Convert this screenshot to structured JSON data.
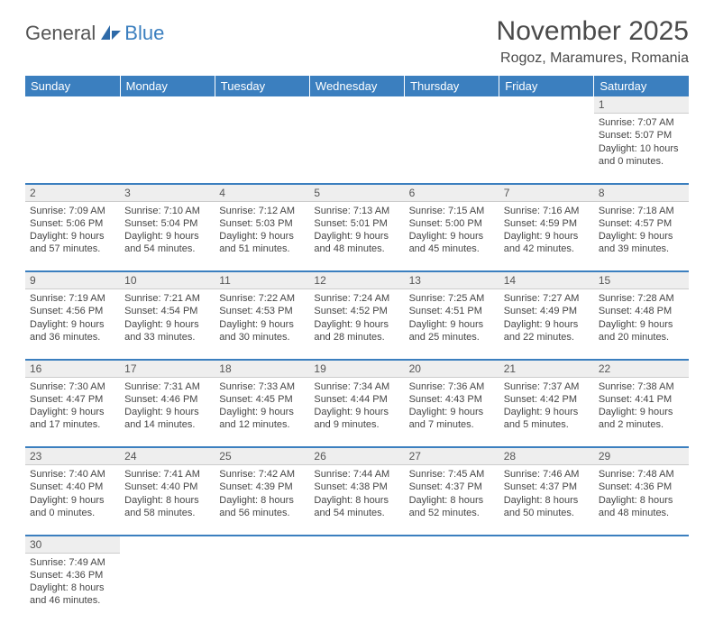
{
  "logo": {
    "word1": "General",
    "word2": "Blue"
  },
  "title": "November 2025",
  "location": "Rogoz, Maramures, Romania",
  "colors": {
    "accent": "#3b7fbf",
    "header_bg": "#3b7fbf",
    "header_text": "#ffffff",
    "daynum_bg": "#eeeeee",
    "text": "#454545",
    "background": "#ffffff"
  },
  "calendar": {
    "type": "table",
    "columns": [
      "Sunday",
      "Monday",
      "Tuesday",
      "Wednesday",
      "Thursday",
      "Friday",
      "Saturday"
    ],
    "weeks": [
      [
        null,
        null,
        null,
        null,
        null,
        null,
        {
          "day": "1",
          "sunrise": "Sunrise: 7:07 AM",
          "sunset": "Sunset: 5:07 PM",
          "daylight1": "Daylight: 10 hours",
          "daylight2": "and 0 minutes."
        }
      ],
      [
        {
          "day": "2",
          "sunrise": "Sunrise: 7:09 AM",
          "sunset": "Sunset: 5:06 PM",
          "daylight1": "Daylight: 9 hours",
          "daylight2": "and 57 minutes."
        },
        {
          "day": "3",
          "sunrise": "Sunrise: 7:10 AM",
          "sunset": "Sunset: 5:04 PM",
          "daylight1": "Daylight: 9 hours",
          "daylight2": "and 54 minutes."
        },
        {
          "day": "4",
          "sunrise": "Sunrise: 7:12 AM",
          "sunset": "Sunset: 5:03 PM",
          "daylight1": "Daylight: 9 hours",
          "daylight2": "and 51 minutes."
        },
        {
          "day": "5",
          "sunrise": "Sunrise: 7:13 AM",
          "sunset": "Sunset: 5:01 PM",
          "daylight1": "Daylight: 9 hours",
          "daylight2": "and 48 minutes."
        },
        {
          "day": "6",
          "sunrise": "Sunrise: 7:15 AM",
          "sunset": "Sunset: 5:00 PM",
          "daylight1": "Daylight: 9 hours",
          "daylight2": "and 45 minutes."
        },
        {
          "day": "7",
          "sunrise": "Sunrise: 7:16 AM",
          "sunset": "Sunset: 4:59 PM",
          "daylight1": "Daylight: 9 hours",
          "daylight2": "and 42 minutes."
        },
        {
          "day": "8",
          "sunrise": "Sunrise: 7:18 AM",
          "sunset": "Sunset: 4:57 PM",
          "daylight1": "Daylight: 9 hours",
          "daylight2": "and 39 minutes."
        }
      ],
      [
        {
          "day": "9",
          "sunrise": "Sunrise: 7:19 AM",
          "sunset": "Sunset: 4:56 PM",
          "daylight1": "Daylight: 9 hours",
          "daylight2": "and 36 minutes."
        },
        {
          "day": "10",
          "sunrise": "Sunrise: 7:21 AM",
          "sunset": "Sunset: 4:54 PM",
          "daylight1": "Daylight: 9 hours",
          "daylight2": "and 33 minutes."
        },
        {
          "day": "11",
          "sunrise": "Sunrise: 7:22 AM",
          "sunset": "Sunset: 4:53 PM",
          "daylight1": "Daylight: 9 hours",
          "daylight2": "and 30 minutes."
        },
        {
          "day": "12",
          "sunrise": "Sunrise: 7:24 AM",
          "sunset": "Sunset: 4:52 PM",
          "daylight1": "Daylight: 9 hours",
          "daylight2": "and 28 minutes."
        },
        {
          "day": "13",
          "sunrise": "Sunrise: 7:25 AM",
          "sunset": "Sunset: 4:51 PM",
          "daylight1": "Daylight: 9 hours",
          "daylight2": "and 25 minutes."
        },
        {
          "day": "14",
          "sunrise": "Sunrise: 7:27 AM",
          "sunset": "Sunset: 4:49 PM",
          "daylight1": "Daylight: 9 hours",
          "daylight2": "and 22 minutes."
        },
        {
          "day": "15",
          "sunrise": "Sunrise: 7:28 AM",
          "sunset": "Sunset: 4:48 PM",
          "daylight1": "Daylight: 9 hours",
          "daylight2": "and 20 minutes."
        }
      ],
      [
        {
          "day": "16",
          "sunrise": "Sunrise: 7:30 AM",
          "sunset": "Sunset: 4:47 PM",
          "daylight1": "Daylight: 9 hours",
          "daylight2": "and 17 minutes."
        },
        {
          "day": "17",
          "sunrise": "Sunrise: 7:31 AM",
          "sunset": "Sunset: 4:46 PM",
          "daylight1": "Daylight: 9 hours",
          "daylight2": "and 14 minutes."
        },
        {
          "day": "18",
          "sunrise": "Sunrise: 7:33 AM",
          "sunset": "Sunset: 4:45 PM",
          "daylight1": "Daylight: 9 hours",
          "daylight2": "and 12 minutes."
        },
        {
          "day": "19",
          "sunrise": "Sunrise: 7:34 AM",
          "sunset": "Sunset: 4:44 PM",
          "daylight1": "Daylight: 9 hours",
          "daylight2": "and 9 minutes."
        },
        {
          "day": "20",
          "sunrise": "Sunrise: 7:36 AM",
          "sunset": "Sunset: 4:43 PM",
          "daylight1": "Daylight: 9 hours",
          "daylight2": "and 7 minutes."
        },
        {
          "day": "21",
          "sunrise": "Sunrise: 7:37 AM",
          "sunset": "Sunset: 4:42 PM",
          "daylight1": "Daylight: 9 hours",
          "daylight2": "and 5 minutes."
        },
        {
          "day": "22",
          "sunrise": "Sunrise: 7:38 AM",
          "sunset": "Sunset: 4:41 PM",
          "daylight1": "Daylight: 9 hours",
          "daylight2": "and 2 minutes."
        }
      ],
      [
        {
          "day": "23",
          "sunrise": "Sunrise: 7:40 AM",
          "sunset": "Sunset: 4:40 PM",
          "daylight1": "Daylight: 9 hours",
          "daylight2": "and 0 minutes."
        },
        {
          "day": "24",
          "sunrise": "Sunrise: 7:41 AM",
          "sunset": "Sunset: 4:40 PM",
          "daylight1": "Daylight: 8 hours",
          "daylight2": "and 58 minutes."
        },
        {
          "day": "25",
          "sunrise": "Sunrise: 7:42 AM",
          "sunset": "Sunset: 4:39 PM",
          "daylight1": "Daylight: 8 hours",
          "daylight2": "and 56 minutes."
        },
        {
          "day": "26",
          "sunrise": "Sunrise: 7:44 AM",
          "sunset": "Sunset: 4:38 PM",
          "daylight1": "Daylight: 8 hours",
          "daylight2": "and 54 minutes."
        },
        {
          "day": "27",
          "sunrise": "Sunrise: 7:45 AM",
          "sunset": "Sunset: 4:37 PM",
          "daylight1": "Daylight: 8 hours",
          "daylight2": "and 52 minutes."
        },
        {
          "day": "28",
          "sunrise": "Sunrise: 7:46 AM",
          "sunset": "Sunset: 4:37 PM",
          "daylight1": "Daylight: 8 hours",
          "daylight2": "and 50 minutes."
        },
        {
          "day": "29",
          "sunrise": "Sunrise: 7:48 AM",
          "sunset": "Sunset: 4:36 PM",
          "daylight1": "Daylight: 8 hours",
          "daylight2": "and 48 minutes."
        }
      ],
      [
        {
          "day": "30",
          "sunrise": "Sunrise: 7:49 AM",
          "sunset": "Sunset: 4:36 PM",
          "daylight1": "Daylight: 8 hours",
          "daylight2": "and 46 minutes."
        },
        null,
        null,
        null,
        null,
        null,
        null
      ]
    ]
  }
}
